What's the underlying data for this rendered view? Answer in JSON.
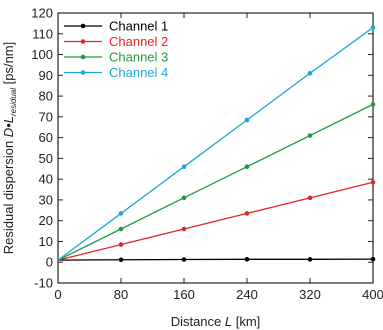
{
  "chart_data": {
    "type": "line",
    "title": "",
    "xlabel": {
      "prefix": "Distance ",
      "var": "L",
      "suffix": " [km]"
    },
    "ylabel": {
      "prefix": "Residual dispersion ",
      "var": "D•L",
      "sub": "residual",
      "suffix": " [ps/nm]"
    },
    "xlim": [
      0,
      400
    ],
    "ylim": [
      -10,
      120
    ],
    "xticks": [
      0,
      80,
      160,
      240,
      320,
      400
    ],
    "yticks": [
      -10,
      0,
      10,
      20,
      30,
      40,
      50,
      60,
      70,
      80,
      90,
      100,
      110,
      120
    ],
    "grid": false,
    "legend_position": "top-left",
    "x": [
      0,
      80,
      160,
      240,
      320,
      400
    ],
    "series": [
      {
        "name": "Channel 1",
        "color": "#000000",
        "values": [
          1.0,
          1.2,
          1.3,
          1.4,
          1.4,
          1.5
        ]
      },
      {
        "name": "Channel 2",
        "color": "#e0262b",
        "values": [
          1.0,
          8.5,
          16.0,
          23.5,
          31.0,
          38.5
        ]
      },
      {
        "name": "Channel 3",
        "color": "#1e9a3c",
        "values": [
          1.0,
          16.0,
          31.0,
          46.0,
          61.0,
          76.0
        ]
      },
      {
        "name": "Channel 4",
        "color": "#1fa6d8",
        "values": [
          1.0,
          23.5,
          46.0,
          68.5,
          91.0,
          113.0
        ]
      }
    ]
  }
}
